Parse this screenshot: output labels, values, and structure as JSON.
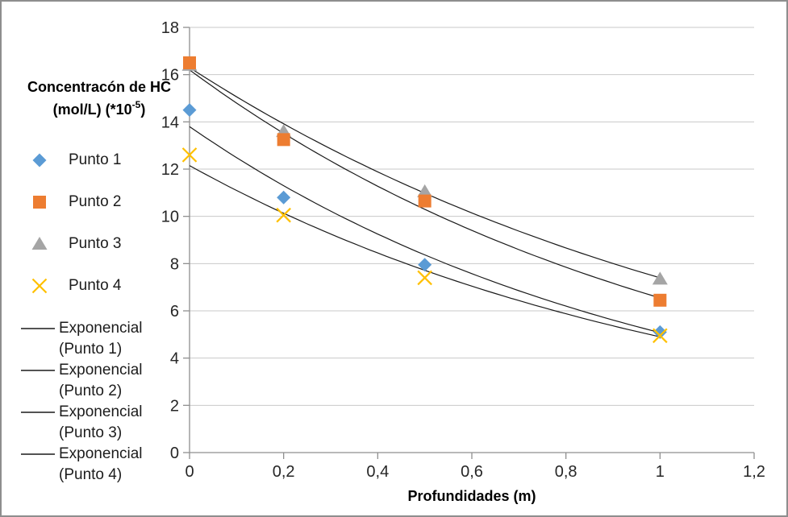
{
  "chart_data": {
    "type": "scatter",
    "title": "",
    "ylabel": "Concentracón de HC (mol/L) (*10-5)",
    "ylabel_line1": "Concentracón de HC",
    "ylabel_line2_pre": "(mol/L) (*10",
    "ylabel_sup": "-5",
    "ylabel_line2_post": ")",
    "xlabel": "Profundidades (m)",
    "xlim": [
      0,
      1.2
    ],
    "ylim": [
      0,
      18
    ],
    "grid": true,
    "legend_position": "left",
    "x_ticks": [
      {
        "v": 0,
        "label": "0"
      },
      {
        "v": 0.2,
        "label": "0,2"
      },
      {
        "v": 0.4,
        "label": "0,4"
      },
      {
        "v": 0.6,
        "label": "0,6"
      },
      {
        "v": 0.8,
        "label": "0,8"
      },
      {
        "v": 1,
        "label": "1"
      },
      {
        "v": 1.2,
        "label": "1,2"
      }
    ],
    "y_ticks": [
      0,
      2,
      4,
      6,
      8,
      10,
      12,
      14,
      16,
      18
    ],
    "x": [
      0,
      0.2,
      0.5,
      1
    ],
    "series": [
      {
        "name": "Punto 1",
        "marker": "diamond",
        "color": "#5B9BD5",
        "values": [
          14.5,
          10.8,
          7.95,
          5.1
        ]
      },
      {
        "name": "Punto 2",
        "marker": "square",
        "color": "#ED7D31",
        "values": [
          16.5,
          13.25,
          10.65,
          6.45
        ]
      },
      {
        "name": "Punto 3",
        "marker": "triangle",
        "color": "#A5A5A5",
        "values": [
          16.4,
          13.6,
          11.05,
          7.35
        ]
      },
      {
        "name": "Punto 4",
        "marker": "x",
        "color": "#FFC000",
        "values": [
          12.6,
          10.05,
          7.4,
          4.95
        ]
      }
    ],
    "trendlines": [
      {
        "name": "Exponencial (Punto 1)",
        "a": 13.8,
        "k": -1.0,
        "x_range": [
          0,
          1
        ]
      },
      {
        "name": "Exponencial (Punto 2)",
        "a": 16.2,
        "k": -0.906,
        "x_range": [
          0,
          1
        ]
      },
      {
        "name": "Exponencial (Punto 3)",
        "a": 16.3,
        "k": -0.79,
        "x_range": [
          0,
          1
        ]
      },
      {
        "name": "Exponencial (Punto 4)",
        "a": 12.15,
        "k": -0.908,
        "x_range": [
          0,
          1
        ]
      }
    ],
    "colors": {
      "trendline": "#1a1a1a",
      "gridline": "#c9c9c9",
      "axis": "#8f8f8f",
      "tick_text": "#262626",
      "border": "#8e8e8e"
    }
  }
}
